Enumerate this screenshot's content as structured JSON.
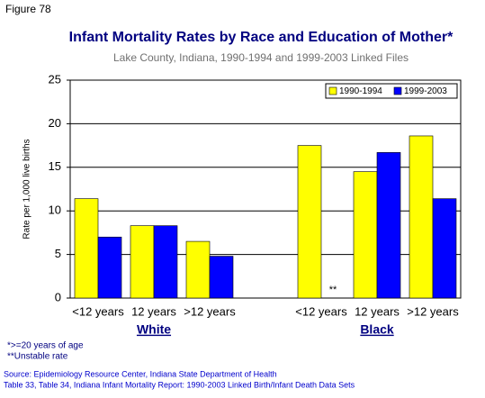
{
  "figure_label": "Figure 78",
  "chart_data": {
    "type": "bar",
    "title": "Infant Mortality Rates by Race and Education of Mother*",
    "subtitle": "Lake County, Indiana, 1990-1994 and 1999-2003 Linked Files",
    "y_label": "Rate per 1,000 live births",
    "categories": [
      "<12 years",
      "12 years",
      ">12 years",
      null,
      "<12 years",
      "12 years",
      ">12 years"
    ],
    "group_labels": [
      "White",
      "Black"
    ],
    "series": [
      {
        "name": "1990-1994",
        "color": "#ffff00",
        "values": [
          11.4,
          8.3,
          6.5,
          null,
          17.5,
          14.5,
          18.6
        ]
      },
      {
        "name": "1999-2003",
        "color": "#0000ff",
        "values": [
          7.0,
          8.3,
          4.8,
          null,
          null,
          16.7,
          11.4
        ]
      }
    ],
    "annotation": "**",
    "ylim": [
      0,
      25
    ],
    "yticks": [
      0,
      5,
      10,
      15,
      20,
      25
    ],
    "grid": true,
    "legend": "top-right"
  },
  "footnotes": [
    "*>=20 years of age",
    "**Unstable rate"
  ],
  "source": [
    "Source: Epidemiology Resource Center, Indiana State Department of Health",
    "Table 33, Table 34, Indiana Infant Mortality Report: 1990-2003 Linked Birth/Infant Death Data Sets"
  ]
}
